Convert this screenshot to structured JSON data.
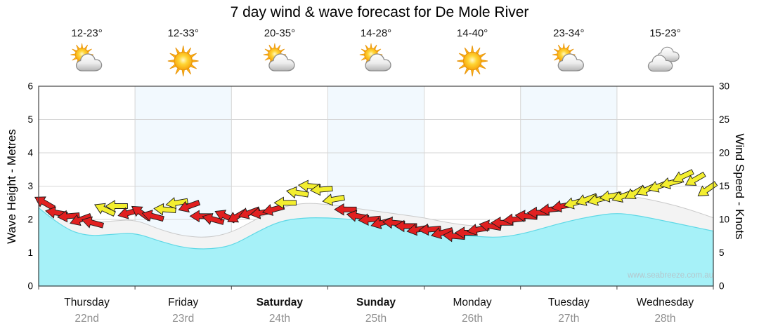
{
  "title": "7 day wind & wave forecast for De Mole River",
  "watermark": "www.seabreeze.com.au",
  "axes": {
    "left_label": "Wave Height - Metres",
    "right_label": "Wind Speed - Knots"
  },
  "days": [
    {
      "name": "Thursday",
      "date": "22nd",
      "temp": "12-23°",
      "icon": "sun-cloud",
      "bold": false
    },
    {
      "name": "Friday",
      "date": "23rd",
      "temp": "12-33°",
      "icon": "sun",
      "bold": false
    },
    {
      "name": "Saturday",
      "date": "24th",
      "temp": "20-35°",
      "icon": "sun-cloud",
      "bold": true
    },
    {
      "name": "Sunday",
      "date": "25th",
      "temp": "14-28°",
      "icon": "sun-cloud",
      "bold": true
    },
    {
      "name": "Monday",
      "date": "26th",
      "temp": "14-40°",
      "icon": "sun",
      "bold": false
    },
    {
      "name": "Tuesday",
      "date": "27th",
      "temp": "23-34°",
      "icon": "sun-cloud",
      "bold": false
    },
    {
      "name": "Wednesday",
      "date": "28th",
      "temp": "15-23°",
      "icon": "clouds",
      "bold": false
    }
  ],
  "colors": {
    "wave_fill": "#a6f1f8",
    "wave_edge": "#5fd8e6",
    "band_fill": "#f3f3f3",
    "band_edge": "#c9c9c9",
    "arrow_red": "#e12020",
    "arrow_yellow": "#f3ee2f",
    "arrow_outline": "#1a1a1a",
    "grid": "#d6d6d6",
    "axis": "#444444",
    "alt_column": "#f2f9fe",
    "day_label": "#111111",
    "date_label": "#8f8f8f"
  },
  "chart_data": {
    "type": "area",
    "title": "7 day wind & wave forecast for De Mole River",
    "x_axis": {
      "unit": "days",
      "range": [
        0,
        7
      ],
      "day_labels": [
        "Thursday",
        "Friday",
        "Saturday",
        "Sunday",
        "Monday",
        "Tuesday",
        "Wednesday"
      ],
      "day_dates": [
        "22nd",
        "23rd",
        "24th",
        "25th",
        "26th",
        "27th",
        "28th"
      ]
    },
    "y_left": {
      "label": "Wave Height - Metres",
      "range": [
        0,
        6
      ],
      "ticks": [
        0,
        1,
        2,
        3,
        4,
        5,
        6
      ]
    },
    "y_right": {
      "label": "Wind Speed - Knots",
      "range": [
        0,
        30
      ],
      "ticks": [
        0,
        5,
        10,
        15,
        20,
        25,
        30
      ]
    },
    "series_x_days": [
      0,
      0.25,
      0.5,
      0.75,
      1,
      1.25,
      1.5,
      1.75,
      2,
      2.25,
      2.5,
      2.75,
      3,
      3.25,
      3.5,
      3.75,
      4,
      4.25,
      4.5,
      4.75,
      5,
      5.25,
      5.5,
      5.75,
      6,
      6.25,
      6.5,
      6.75,
      7
    ],
    "series": [
      {
        "name": "Swell band top (m)",
        "axis": "left",
        "values": [
          2.6,
          2.1,
          1.9,
          1.95,
          2.0,
          1.7,
          1.5,
          1.45,
          1.6,
          2.0,
          2.35,
          2.5,
          2.45,
          2.35,
          2.25,
          2.15,
          2.05,
          1.9,
          1.8,
          1.8,
          1.95,
          2.2,
          2.45,
          2.65,
          2.75,
          2.65,
          2.5,
          2.3,
          2.05
        ]
      },
      {
        "name": "Wave height (m)",
        "axis": "left",
        "values": [
          2.35,
          1.75,
          1.5,
          1.55,
          1.6,
          1.35,
          1.15,
          1.1,
          1.2,
          1.6,
          1.95,
          2.05,
          2.05,
          2.0,
          1.95,
          1.85,
          1.7,
          1.55,
          1.5,
          1.45,
          1.55,
          1.75,
          1.95,
          2.1,
          2.2,
          2.1,
          1.95,
          1.8,
          1.65
        ]
      }
    ],
    "wind_arrows": {
      "axis": "right",
      "x": [
        0.0625,
        0.1875,
        0.3125,
        0.4375,
        0.5625,
        0.6875,
        0.8125,
        0.9375,
        1.0625,
        1.1875,
        1.3125,
        1.4375,
        1.5625,
        1.6875,
        1.8125,
        1.9375,
        2.0625,
        2.1875,
        2.3125,
        2.4375,
        2.5625,
        2.6875,
        2.8125,
        2.9375,
        3.0625,
        3.1875,
        3.3125,
        3.4375,
        3.5625,
        3.6875,
        3.8125,
        3.9375,
        4.0625,
        4.1875,
        4.3125,
        4.4375,
        4.5625,
        4.6875,
        4.8125,
        4.9375,
        5.0625,
        5.1875,
        5.3125,
        5.4375,
        5.5625,
        5.6875,
        5.8125,
        5.9375,
        6.0625,
        6.1875,
        6.3125,
        6.4375,
        6.5625,
        6.6875,
        6.8125,
        6.9375
      ],
      "knots": [
        12.5,
        11,
        10.5,
        10,
        9.5,
        11.5,
        12,
        11,
        11,
        10.5,
        11.5,
        12.5,
        12,
        10.5,
        10,
        10.5,
        10.5,
        11,
        11,
        11.5,
        12.5,
        14,
        15,
        14.5,
        13,
        11.5,
        10.5,
        10,
        9.5,
        9.5,
        9,
        8.5,
        8.5,
        8,
        7.5,
        8,
        8.5,
        9,
        9.5,
        10,
        10.5,
        11,
        11.5,
        12,
        12.5,
        13,
        13,
        13.5,
        13.5,
        14,
        14.5,
        15,
        15.5,
        16.5,
        16,
        14.5
      ],
      "direction_deg": [
        210,
        190,
        175,
        160,
        195,
        205,
        180,
        165,
        215,
        195,
        185,
        170,
        160,
        180,
        195,
        205,
        150,
        160,
        170,
        165,
        180,
        190,
        185,
        175,
        170,
        180,
        190,
        175,
        165,
        185,
        180,
        170,
        175,
        165,
        185,
        180,
        170,
        190,
        180,
        175,
        185,
        180,
        175,
        170,
        165,
        160,
        165,
        170,
        160,
        150,
        155,
        160,
        165,
        155,
        150,
        145
      ],
      "strength": [
        "red",
        "red",
        "red",
        "red",
        "red",
        "yellow",
        "yellow",
        "red",
        "red",
        "red",
        "yellow",
        "yellow",
        "red",
        "red",
        "red",
        "red",
        "red",
        "red",
        "red",
        "red",
        "yellow",
        "yellow",
        "yellow",
        "yellow",
        "yellow",
        "red",
        "red",
        "red",
        "red",
        "red",
        "red",
        "red",
        "red",
        "red",
        "red",
        "red",
        "red",
        "red",
        "red",
        "red",
        "red",
        "red",
        "red",
        "red",
        "yellow",
        "yellow",
        "yellow",
        "yellow",
        "yellow",
        "yellow",
        "yellow",
        "yellow",
        "yellow",
        "yellow",
        "yellow",
        "yellow"
      ]
    }
  }
}
